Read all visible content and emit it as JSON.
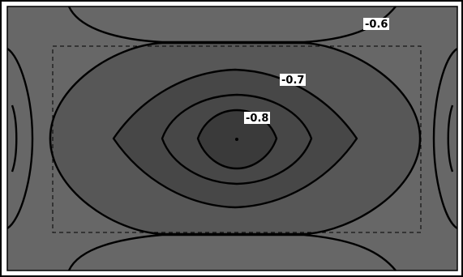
{
  "chart_data": {
    "type": "contour",
    "title": "",
    "xlabel": "",
    "ylabel": "",
    "grid": false,
    "legend": "none",
    "colors": {
      "background": "#676767",
      "band_above_-0.6": "#6a6a6a",
      "band_-0.7_to_-0.6": "#575757",
      "band_-0.8_to_-0.7": "#474747",
      "band_below_-0.8": "#3a3a3a",
      "contour_line": "#000000",
      "frame": "#000000"
    },
    "levels": [
      {
        "value": -0.6,
        "label": "-0.6"
      },
      {
        "value": -0.7,
        "label": "-0.7"
      },
      {
        "value": -0.8,
        "label": "-0.8"
      }
    ],
    "annotations": {
      "dashed_rectangle": true,
      "center_point": true
    }
  }
}
